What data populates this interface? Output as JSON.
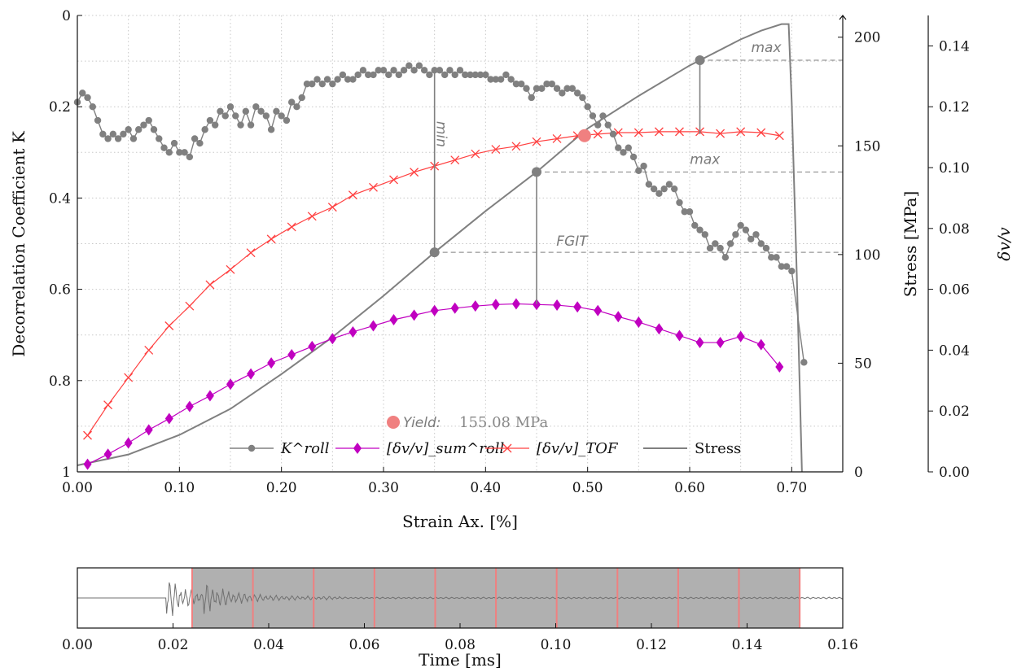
{
  "chart_data": [
    {
      "type": "line",
      "xlabel": "Strain Ax. [%]",
      "ylabel_left": "Decorrelation Coefficient K",
      "ylabel_right": "Stress [MPa]",
      "ylabel_right2": "δv/v",
      "xlim": [
        0,
        0.75
      ],
      "ylim_left": [
        1,
        0
      ],
      "ylim_right": [
        0,
        210
      ],
      "ylim_right2": [
        0,
        0.15
      ],
      "xticks": [
        "0.00",
        "0.10",
        "0.20",
        "0.30",
        "0.40",
        "0.50",
        "0.60",
        "0.70"
      ],
      "yticks_left": [
        "0",
        "0.2",
        "0.4",
        "0.6",
        "0.8",
        "1"
      ],
      "yticks_right": [
        "0",
        "50",
        "100",
        "150",
        "200"
      ],
      "yticks_right2": [
        "0.00",
        "0.02",
        "0.04",
        "0.06",
        "0.08",
        "0.10",
        "0.12",
        "0.14"
      ],
      "grid": true,
      "legend_position": "bottom-center",
      "colors": {
        "k_roll": "#808080",
        "dvv_sum": "#c000c0",
        "dvv_tof": "#ff4040",
        "stress": "#808080",
        "yield": "#f08080"
      },
      "series": [
        {
          "name": "K^roll",
          "axis": "left",
          "x": [
            0.0,
            0.005,
            0.01,
            0.015,
            0.02,
            0.025,
            0.03,
            0.035,
            0.04,
            0.045,
            0.05,
            0.055,
            0.06,
            0.065,
            0.07,
            0.075,
            0.08,
            0.085,
            0.09,
            0.095,
            0.1,
            0.105,
            0.11,
            0.115,
            0.12,
            0.125,
            0.13,
            0.135,
            0.14,
            0.145,
            0.15,
            0.155,
            0.16,
            0.165,
            0.17,
            0.175,
            0.18,
            0.185,
            0.19,
            0.195,
            0.2,
            0.205,
            0.21,
            0.215,
            0.22,
            0.225,
            0.23,
            0.235,
            0.24,
            0.245,
            0.25,
            0.255,
            0.26,
            0.265,
            0.27,
            0.275,
            0.28,
            0.285,
            0.29,
            0.295,
            0.3,
            0.305,
            0.31,
            0.315,
            0.32,
            0.325,
            0.33,
            0.335,
            0.34,
            0.345,
            0.35,
            0.355,
            0.36,
            0.365,
            0.37,
            0.375,
            0.38,
            0.385,
            0.39,
            0.395,
            0.4,
            0.405,
            0.41,
            0.415,
            0.42,
            0.425,
            0.43,
            0.435,
            0.44,
            0.445,
            0.45,
            0.455,
            0.46,
            0.465,
            0.47,
            0.475,
            0.48,
            0.485,
            0.49,
            0.495,
            0.5,
            0.505,
            0.51,
            0.515,
            0.52,
            0.525,
            0.53,
            0.535,
            0.54,
            0.545,
            0.55,
            0.555,
            0.56,
            0.565,
            0.57,
            0.575,
            0.58,
            0.585,
            0.59,
            0.595,
            0.6,
            0.605,
            0.61,
            0.615,
            0.62,
            0.625,
            0.63,
            0.635,
            0.64,
            0.645,
            0.65,
            0.655,
            0.66,
            0.665,
            0.67,
            0.675,
            0.68,
            0.685,
            0.69,
            0.695,
            0.7,
            0.712
          ],
          "values": [
            0.19,
            0.17,
            0.18,
            0.2,
            0.23,
            0.26,
            0.27,
            0.26,
            0.27,
            0.26,
            0.25,
            0.27,
            0.25,
            0.24,
            0.23,
            0.25,
            0.27,
            0.29,
            0.3,
            0.28,
            0.3,
            0.3,
            0.31,
            0.27,
            0.28,
            0.25,
            0.23,
            0.24,
            0.21,
            0.22,
            0.2,
            0.22,
            0.24,
            0.21,
            0.24,
            0.2,
            0.21,
            0.22,
            0.25,
            0.21,
            0.22,
            0.23,
            0.19,
            0.2,
            0.18,
            0.15,
            0.15,
            0.14,
            0.15,
            0.14,
            0.15,
            0.14,
            0.13,
            0.14,
            0.14,
            0.13,
            0.12,
            0.13,
            0.13,
            0.12,
            0.12,
            0.13,
            0.12,
            0.13,
            0.12,
            0.11,
            0.12,
            0.11,
            0.12,
            0.13,
            0.12,
            0.12,
            0.13,
            0.12,
            0.13,
            0.12,
            0.13,
            0.13,
            0.13,
            0.13,
            0.13,
            0.14,
            0.14,
            0.14,
            0.13,
            0.14,
            0.15,
            0.15,
            0.16,
            0.18,
            0.16,
            0.16,
            0.15,
            0.15,
            0.16,
            0.17,
            0.16,
            0.16,
            0.17,
            0.18,
            0.2,
            0.22,
            0.24,
            0.22,
            0.24,
            0.26,
            0.29,
            0.3,
            0.29,
            0.31,
            0.34,
            0.33,
            0.37,
            0.38,
            0.39,
            0.38,
            0.37,
            0.38,
            0.41,
            0.43,
            0.43,
            0.46,
            0.47,
            0.48,
            0.51,
            0.5,
            0.51,
            0.53,
            0.5,
            0.48,
            0.46,
            0.47,
            0.49,
            0.48,
            0.5,
            0.51,
            0.53,
            0.53,
            0.55,
            0.55,
            0.56,
            0.76
          ]
        },
        {
          "name": "[δv/v]_sum^roll",
          "axis": "right2",
          "x": [
            0.01,
            0.03,
            0.05,
            0.07,
            0.09,
            0.11,
            0.13,
            0.15,
            0.17,
            0.19,
            0.21,
            0.23,
            0.25,
            0.27,
            0.29,
            0.31,
            0.33,
            0.35,
            0.37,
            0.39,
            0.41,
            0.43,
            0.45,
            0.47,
            0.49,
            0.51,
            0.53,
            0.55,
            0.57,
            0.59,
            0.61,
            0.63,
            0.65,
            0.67,
            0.688
          ],
          "values": [
            0.0025,
            0.0058,
            0.0095,
            0.0138,
            0.0175,
            0.0215,
            0.025,
            0.0288,
            0.0322,
            0.0358,
            0.0385,
            0.0412,
            0.0438,
            0.046,
            0.048,
            0.05,
            0.0515,
            0.053,
            0.0538,
            0.0545,
            0.055,
            0.0552,
            0.055,
            0.0548,
            0.0542,
            0.053,
            0.051,
            0.0492,
            0.047,
            0.0448,
            0.0425,
            0.0425,
            0.0445,
            0.0418,
            0.0345
          ]
        },
        {
          "name": "[δv/v]_TOF",
          "axis": "right2",
          "x": [
            0.01,
            0.03,
            0.05,
            0.07,
            0.09,
            0.11,
            0.13,
            0.15,
            0.17,
            0.19,
            0.21,
            0.23,
            0.25,
            0.27,
            0.29,
            0.31,
            0.33,
            0.35,
            0.37,
            0.39,
            0.41,
            0.43,
            0.45,
            0.47,
            0.49,
            0.51,
            0.53,
            0.55,
            0.57,
            0.59,
            0.61,
            0.63,
            0.65,
            0.67,
            0.688
          ],
          "values": [
            0.012,
            0.022,
            0.031,
            0.04,
            0.048,
            0.0545,
            0.0615,
            0.0665,
            0.072,
            0.0765,
            0.0805,
            0.084,
            0.087,
            0.091,
            0.0935,
            0.096,
            0.0985,
            0.1005,
            0.1025,
            0.1045,
            0.106,
            0.107,
            0.1085,
            0.1095,
            0.1105,
            0.111,
            0.1115,
            0.1115,
            0.1118,
            0.1118,
            0.1118,
            0.1112,
            0.1118,
            0.1115,
            0.1105
          ]
        },
        {
          "name": "Stress",
          "axis": "right",
          "x": [
            0.0,
            0.05,
            0.1,
            0.15,
            0.2,
            0.25,
            0.3,
            0.35,
            0.4,
            0.45,
            0.5,
            0.55,
            0.6,
            0.65,
            0.67,
            0.69,
            0.697,
            0.7,
            0.705,
            0.71
          ],
          "values": [
            3,
            8,
            17,
            29,
            45,
            62,
            81,
            101,
            120,
            138,
            158,
            173,
            187,
            199,
            203,
            206,
            206,
            170,
            90,
            0
          ]
        }
      ],
      "annotations": {
        "yield_label": "Yield:",
        "yield_value": "155.08 MPa",
        "yield_x": 0.497,
        "min_label": "min",
        "max_label_k": "max",
        "max_label_dvv": "max",
        "fgit_label": "FGIT"
      },
      "legend": [
        "K^roll",
        "[δv/v]_sum^roll",
        "[δv/v]_TOF",
        "Stress"
      ]
    },
    {
      "type": "line",
      "xlabel": "Time [ms]",
      "xlim": [
        0,
        0.16
      ],
      "xticks": [
        "0.00",
        "0.02",
        "0.04",
        "0.06",
        "0.08",
        "0.10",
        "0.12",
        "0.14",
        "0.16"
      ],
      "window_start": 0.024,
      "window_end": 0.151,
      "window_boundaries": [
        0.024,
        0.0367,
        0.0494,
        0.0621,
        0.0748,
        0.0875,
        0.1002,
        0.1129,
        0.1256,
        0.1383,
        0.151
      ],
      "colors": {
        "waveform": "#707070",
        "window_fill": "#b0b0b0",
        "boundary": "#f08080"
      }
    }
  ]
}
